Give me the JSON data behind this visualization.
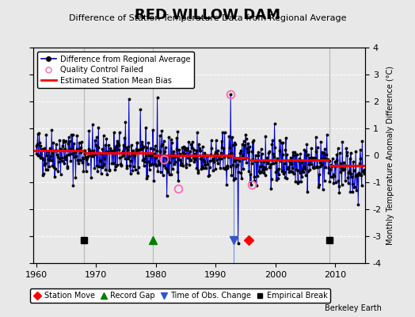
{
  "title": "RED WILLOW DAM",
  "subtitle": "Difference of Station Temperature Data from Regional Average",
  "ylabel": "Monthly Temperature Anomaly Difference (°C)",
  "background_color": "#e8e8e8",
  "plot_bg_color": "#e8e8e8",
  "xlim": [
    1959.5,
    2015.0
  ],
  "ylim": [
    -4,
    4
  ],
  "yticks": [
    -4,
    -3,
    -2,
    -1,
    0,
    1,
    2,
    3,
    4
  ],
  "xticks": [
    1960,
    1970,
    1980,
    1990,
    2000,
    2010
  ],
  "grid_color": "#ffffff",
  "line_color": "#0000cc",
  "bias_color": "#ff0000",
  "marker_color": "#000000",
  "qc_color": "#ff69b4",
  "seed": 42,
  "station_move_years": [
    1995.5
  ],
  "station_move_vals": [
    -3.15
  ],
  "record_gap_years": [
    1979.5
  ],
  "record_gap_vals": [
    -3.15
  ],
  "empirical_break_years": [
    1968,
    2009
  ],
  "empirical_break_vals": [
    -3.15,
    -3.15
  ],
  "obs_change_years": [
    1993.0
  ],
  "obs_change_vals": [
    -3.15
  ],
  "qc_failed_years": [
    1981.3,
    1983.8,
    1992.5,
    1996.0
  ],
  "qc_failed_vals": [
    -0.15,
    -1.25,
    2.25,
    -1.1
  ],
  "bias_segments": [
    {
      "x": [
        1959.5,
        1968
      ],
      "y": [
        0.18,
        0.18
      ]
    },
    {
      "x": [
        1968,
        1979.5
      ],
      "y": [
        0.08,
        0.08
      ]
    },
    {
      "x": [
        1979.5,
        1993.0
      ],
      "y": [
        0.0,
        0.0
      ]
    },
    {
      "x": [
        1993.0,
        1995.5
      ],
      "y": [
        -0.08,
        -0.08
      ]
    },
    {
      "x": [
        1995.5,
        2009
      ],
      "y": [
        -0.18,
        -0.18
      ]
    },
    {
      "x": [
        2009,
        2015.0
      ],
      "y": [
        -0.38,
        -0.38
      ]
    }
  ],
  "vertical_lines": [
    1968,
    1979.5,
    2009
  ],
  "vertical_line_color": "#bbbbbb",
  "note": "Berkeley Earth"
}
